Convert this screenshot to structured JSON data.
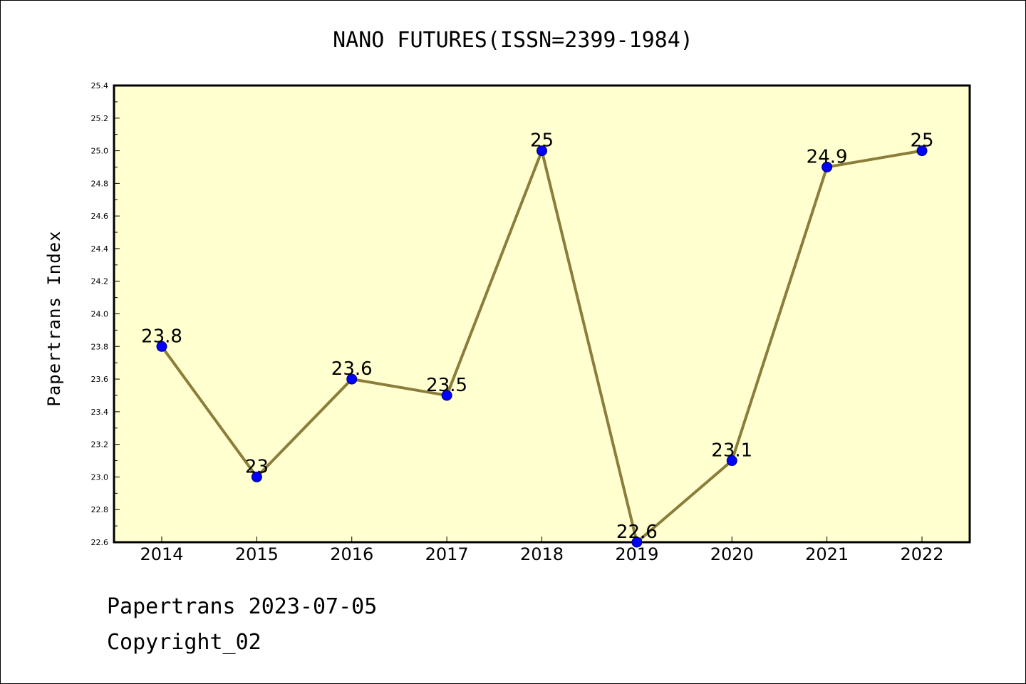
{
  "chart_data": {
    "type": "line",
    "title": "NANO FUTURES(ISSN=2399-1984)",
    "xlabel": "",
    "ylabel": "Papertrans Index",
    "categories": [
      "2014",
      "2015",
      "2016",
      "2017",
      "2018",
      "2019",
      "2020",
      "2021",
      "2022"
    ],
    "series": [
      {
        "values": [
          23.8,
          23.0,
          23.6,
          23.5,
          25.0,
          22.6,
          23.1,
          24.9,
          25.0
        ],
        "labels": [
          "23.8",
          "23",
          "23.6",
          "23.5",
          "25",
          "22.6",
          "23.1",
          "24.9",
          "25"
        ]
      }
    ],
    "ylim": [
      22.6,
      25.4
    ],
    "yticks": [
      "22.6",
      "22.8",
      "23.0",
      "23.2",
      "23.4",
      "23.6",
      "23.8",
      "24.0",
      "24.2",
      "24.4",
      "24.6",
      "24.8",
      "25.0",
      "25.2",
      "25.4"
    ],
    "grid": false,
    "legend": "none",
    "colors": {
      "plot_background": "#ffffd0",
      "line": "#8b7d3a",
      "marker": "#0000ff"
    }
  },
  "footer": {
    "line1": "Papertrans 2023-07-05",
    "line2": "Copyright_02"
  }
}
